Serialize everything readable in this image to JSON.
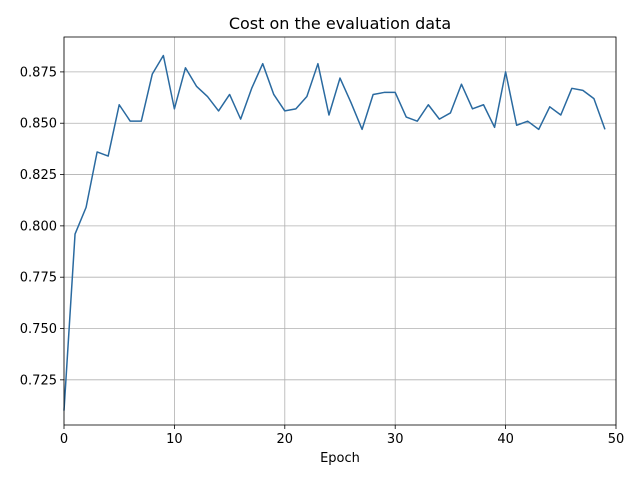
{
  "chart_data": {
    "type": "line",
    "title": "Cost on the evaluation data",
    "xlabel": "Epoch",
    "ylabel": "",
    "xlim": [
      0,
      50
    ],
    "ylim": [
      0.703,
      0.892
    ],
    "xticks": [
      0,
      10,
      20,
      30,
      40,
      50
    ],
    "yticks": [
      0.725,
      0.75,
      0.775,
      0.8,
      0.825,
      0.85,
      0.875
    ],
    "xtick_labels": [
      "0",
      "10",
      "20",
      "30",
      "40",
      "50"
    ],
    "ytick_labels": [
      "0.725",
      "0.750",
      "0.775",
      "0.800",
      "0.825",
      "0.850",
      "0.875"
    ],
    "grid": true,
    "color": "#2a6aa0",
    "series": [
      {
        "x": [
          0,
          1,
          2,
          3,
          4,
          5,
          6,
          7,
          8,
          9,
          10,
          11,
          12,
          13,
          14,
          15,
          16,
          17,
          18,
          19,
          20,
          21,
          22,
          23,
          24,
          25,
          26,
          27,
          28,
          29,
          30,
          31,
          32,
          33,
          34,
          35,
          36,
          37,
          38,
          39,
          40,
          41,
          42,
          43,
          44,
          45,
          46,
          47,
          48,
          49
        ],
        "values": [
          0.71,
          0.796,
          0.809,
          0.836,
          0.834,
          0.859,
          0.851,
          0.851,
          0.874,
          0.883,
          0.857,
          0.877,
          0.868,
          0.863,
          0.856,
          0.864,
          0.852,
          0.867,
          0.879,
          0.864,
          0.856,
          0.857,
          0.863,
          0.879,
          0.854,
          0.872,
          0.86,
          0.847,
          0.864,
          0.865,
          0.865,
          0.853,
          0.851,
          0.859,
          0.852,
          0.855,
          0.869,
          0.857,
          0.859,
          0.848,
          0.875,
          0.849,
          0.851,
          0.847,
          0.858,
          0.854,
          0.867,
          0.866,
          0.862,
          0.847
        ]
      }
    ]
  }
}
